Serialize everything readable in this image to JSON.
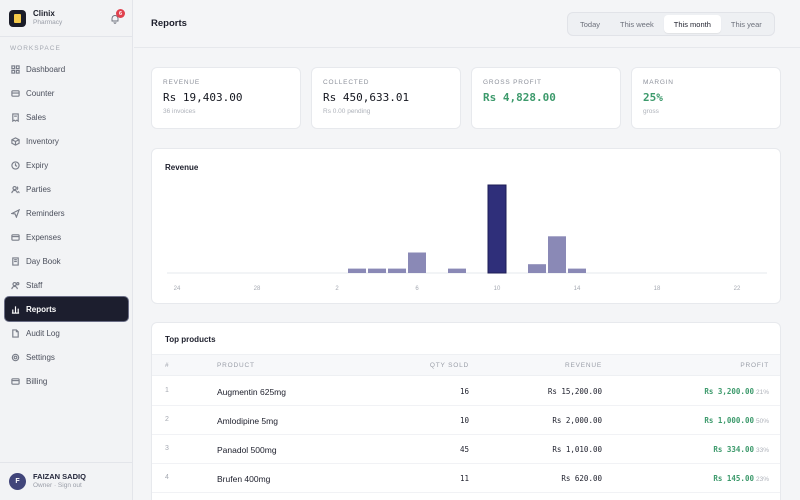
{
  "brand": {
    "name": "Clinix",
    "subtitle": "Pharmacy",
    "notification_count": "6"
  },
  "sidebar": {
    "section_label": "WORKSPACE",
    "items": [
      {
        "label": "Dashboard",
        "icon": "grid-icon"
      },
      {
        "label": "Counter",
        "icon": "counter-icon"
      },
      {
        "label": "Sales",
        "icon": "receipt-icon"
      },
      {
        "label": "Inventory",
        "icon": "box-icon"
      },
      {
        "label": "Expiry",
        "icon": "clock-icon"
      },
      {
        "label": "Parties",
        "icon": "users-icon"
      },
      {
        "label": "Reminders",
        "icon": "send-icon"
      },
      {
        "label": "Expenses",
        "icon": "wallet-icon"
      },
      {
        "label": "Day Book",
        "icon": "book-icon"
      },
      {
        "label": "Staff",
        "icon": "staff-icon"
      },
      {
        "label": "Reports",
        "icon": "bar-chart-icon",
        "active": true
      },
      {
        "label": "Audit Log",
        "icon": "file-icon"
      },
      {
        "label": "Settings",
        "icon": "gear-icon"
      },
      {
        "label": "Billing",
        "icon": "card-icon"
      }
    ]
  },
  "user": {
    "initial": "F",
    "name": "FAIZAN SADIQ",
    "subtitle": "Owner · Sign out"
  },
  "header": {
    "title": "Reports",
    "ranges": [
      "Today",
      "This week",
      "This month",
      "This year"
    ],
    "active_range": "This month"
  },
  "cards": [
    {
      "label": "REVENUE",
      "value": "Rs 19,403.00",
      "sub": "36 invoices",
      "green": false
    },
    {
      "label": "COLLECTED",
      "value": "Rs 450,633.01",
      "sub": "Rs 0.00 pending",
      "green": false
    },
    {
      "label": "GROSS PROFIT",
      "value": "Rs 4,828.00",
      "sub": "",
      "green": true
    },
    {
      "label": "MARGIN",
      "value": "25%",
      "sub": "gross",
      "green": true
    }
  ],
  "chart": {
    "title": "Revenue"
  },
  "chart_data": {
    "type": "bar",
    "title": "Revenue",
    "x_tick_labels": [
      "24",
      "28",
      "2",
      "6",
      "10",
      "14",
      "18",
      "22"
    ],
    "values": [
      0,
      0,
      0,
      0,
      0,
      0,
      0,
      0,
      0,
      1.5,
      1.5,
      1.5,
      7,
      0,
      1.5,
      0,
      30,
      0,
      3,
      12.5,
      1.5,
      0,
      0,
      0,
      0,
      0,
      0,
      0,
      0,
      0
    ],
    "highlight_index": 16,
    "bar_color": "#8a89b6",
    "highlight_color": "#2f2f7a"
  },
  "table": {
    "title": "Top products",
    "headers": {
      "idx": "#",
      "product": "PRODUCT",
      "qty": "QTY SOLD",
      "revenue": "REVENUE",
      "profit": "PROFIT"
    },
    "rows": [
      {
        "idx": "1",
        "product": "Augmentin 625mg",
        "qty": "16",
        "revenue": "Rs 15,200.00",
        "profit": "Rs 3,200.00",
        "pct": "21%"
      },
      {
        "idx": "2",
        "product": "Amlodipine 5mg",
        "qty": "10",
        "revenue": "Rs 2,000.00",
        "profit": "Rs 1,000.00",
        "pct": "50%"
      },
      {
        "idx": "3",
        "product": "Panadol 500mg",
        "qty": "45",
        "revenue": "Rs 1,010.00",
        "profit": "Rs 334.00",
        "pct": "33%"
      },
      {
        "idx": "4",
        "product": "Brufen 400mg",
        "qty": "11",
        "revenue": "Rs 620.00",
        "profit": "Rs 145.00",
        "pct": "23%"
      }
    ]
  }
}
